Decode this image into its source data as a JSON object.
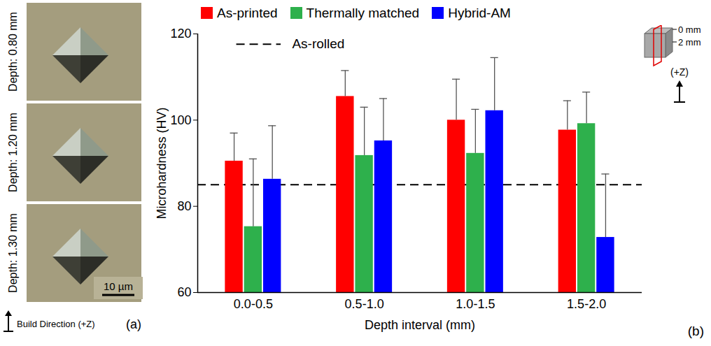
{
  "chart_data": {
    "type": "bar",
    "categories": [
      "0.0-0.5",
      "0.5-1.0",
      "1.0-1.5",
      "1.5-2.0"
    ],
    "series": [
      {
        "name": "As-printed",
        "color": "#ff0000",
        "values": [
          90.5,
          105.5,
          100,
          97.7
        ],
        "errors": [
          6.5,
          6,
          9.5,
          6.8
        ]
      },
      {
        "name": "Thermally matched",
        "color": "#2eb04c",
        "values": [
          75.3,
          91.8,
          92.3,
          99.2
        ],
        "errors": [
          15.7,
          11.2,
          10.2,
          7.3
        ]
      },
      {
        "name": "Hybrid-AM",
        "color": "#0000ff",
        "values": [
          86.3,
          95.2,
          102.2,
          72.8
        ],
        "errors": [
          12.4,
          9.8,
          12.3,
          14.7
        ]
      }
    ],
    "reference": {
      "name": "As-rolled",
      "value": 85,
      "line_style": "dashed"
    },
    "x_label": "Depth interval (mm)",
    "y_label": "Microhardness (HV)",
    "ylim": [
      60,
      120
    ],
    "yticks": [
      60,
      80,
      100,
      120
    ],
    "legend": "top",
    "inset": {
      "labels": [
        "0 mm",
        "2 mm"
      ],
      "arrow_label": "(+Z)"
    },
    "panel_label": "(b)"
  },
  "panel_a": {
    "images": [
      "Depth: 0.80 mm",
      "Depth: 1.20 mm",
      "Depth: 1.30 mm"
    ],
    "scale_bar": "10 µm",
    "arrow_label": "Build Direction (+Z)",
    "panel_label": "(a)"
  }
}
